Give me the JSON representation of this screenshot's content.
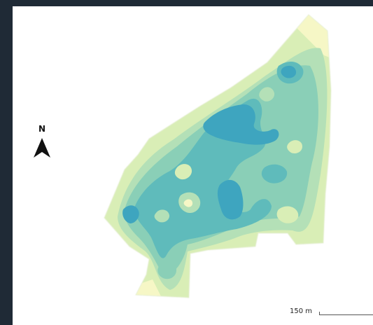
{
  "map": {
    "north_label": "N",
    "scale_label": "150 m",
    "palette": {
      "level_0": "#f6f7c6",
      "level_1": "#d9eeb6",
      "level_2": "#b4e0b7",
      "level_3": "#8acfb7",
      "level_4": "#5fbbbb",
      "level_5": "#3ea5bf"
    },
    "icons": {
      "north_arrow": "north-arrow-icon"
    }
  }
}
